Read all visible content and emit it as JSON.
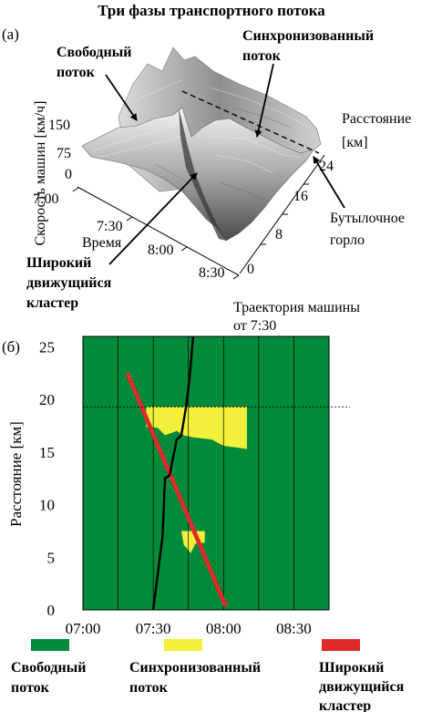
{
  "chart_data": [
    {
      "type": "surface3d",
      "title": "Три фазы транспортного потока",
      "panel_label": "(а)",
      "zlabel": "Скорость машин [км/ч]",
      "z_ticks": [
        "150",
        "75",
        "0"
      ],
      "time_label": "Время",
      "time_ticks": [
        "7:00",
        "7:30",
        "8:00",
        "8:30"
      ],
      "distance_label_line1": "Расстояние",
      "distance_label_line2": "[км]",
      "distance_ticks": [
        "24",
        "16",
        "8",
        "0"
      ],
      "annotations": {
        "free_flow": [
          "Свободный",
          "поток"
        ],
        "synchronized": [
          "Синхронизованный",
          "поток"
        ],
        "bottleneck": [
          "Бутылочное",
          "горло"
        ],
        "wide_jam": [
          "Широкий",
          "движущийся",
          "кластер"
        ]
      }
    },
    {
      "type": "phase-map",
      "panel_label": "(б)",
      "ylabel": "Расстояние [км]",
      "x_ticks": [
        "07:00",
        "07:30",
        "08:00",
        "08:30"
      ],
      "y_ticks": [
        "0",
        "5",
        "10",
        "15",
        "20",
        "25"
      ],
      "xlim_minutes": [
        0,
        105
      ],
      "ylim_km": [
        0,
        26
      ],
      "bottleneck_km": 19.3,
      "trajectory_label": [
        "Траектория машины",
        "от 7:30"
      ],
      "trajectory": [
        [
          30,
          0
        ],
        [
          34,
          7
        ],
        [
          35,
          12.5
        ],
        [
          37,
          12.8
        ],
        [
          40,
          16.2
        ],
        [
          42,
          16.6
        ],
        [
          44,
          19.3
        ],
        [
          45.5,
          22
        ],
        [
          47,
          26
        ]
      ],
      "synchronized_region": [
        [
          27,
          19.3
        ],
        [
          70,
          19.3
        ],
        [
          70,
          15.3
        ],
        [
          60,
          15.6
        ],
        [
          55,
          16.2
        ],
        [
          47,
          16.4
        ],
        [
          43,
          16.6
        ],
        [
          40,
          17.0
        ],
        [
          35,
          16.6
        ],
        [
          32,
          17.3
        ],
        [
          27,
          17.4
        ]
      ],
      "synchronized_patch": [
        [
          42,
          7.5
        ],
        [
          52,
          7.5
        ],
        [
          52,
          6.4
        ],
        [
          48,
          6.3
        ],
        [
          46,
          5.4
        ],
        [
          43,
          6.2
        ]
      ],
      "wide_jam": [
        [
          18,
          22.5
        ],
        [
          20,
          22.5
        ],
        [
          62,
          0.3
        ],
        [
          60,
          0.3
        ]
      ],
      "legend": [
        {
          "label": [
            "Свободный",
            "поток"
          ],
          "color": "#008a3a"
        },
        {
          "label": [
            "Синхронизованный",
            "поток"
          ],
          "color": "#f3f03c"
        },
        {
          "label": [
            "Широкий",
            "движущийся",
            "кластер"
          ],
          "color": "#e02a2a"
        }
      ]
    }
  ]
}
